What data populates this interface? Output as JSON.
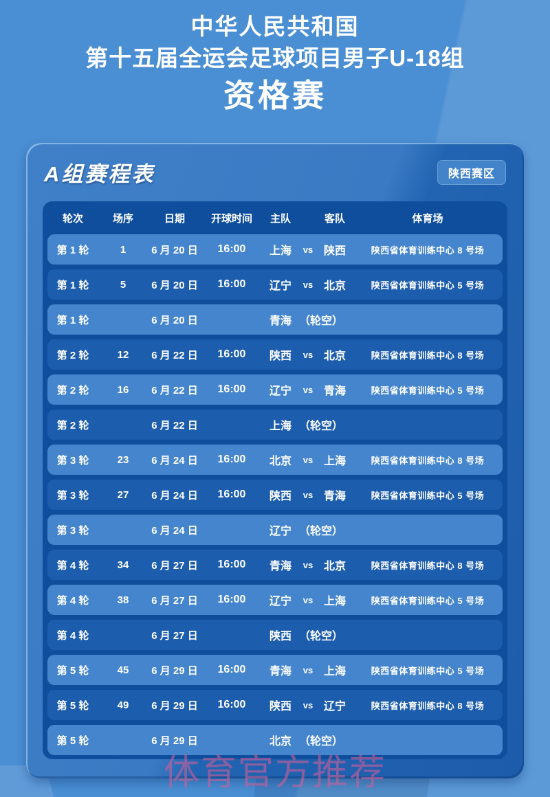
{
  "title": {
    "line1": "中华人民共和国",
    "line2": "第十五届全运会足球项目男子U-18组",
    "line3": "资格赛"
  },
  "schedule_card": {
    "title": "A组赛程表",
    "badge": "陕西赛区",
    "columns": {
      "round": "轮次",
      "seq": "场序",
      "date": "日期",
      "time": "开球时间",
      "home": "主队",
      "away": "客队",
      "venue": "体育场"
    },
    "vs_label": "vs",
    "rows": [
      {
        "round": "第 1 轮",
        "seq": "1",
        "date": "6 月 20 日",
        "time": "16:00",
        "home": "上海",
        "away": "陕西",
        "venue": "陕西省体育训练中心 8 号场"
      },
      {
        "round": "第 1 轮",
        "seq": "5",
        "date": "6 月 20 日",
        "time": "16:00",
        "home": "辽宁",
        "away": "北京",
        "venue": "陕西省体育训练中心 5 号场"
      },
      {
        "round": "第 1 轮",
        "date": "6 月 20 日",
        "team": "青海",
        "bye": "（轮空）"
      },
      {
        "round": "第 2 轮",
        "seq": "12",
        "date": "6 月 22 日",
        "time": "16:00",
        "home": "陕西",
        "away": "北京",
        "venue": "陕西省体育训练中心 8 号场"
      },
      {
        "round": "第 2 轮",
        "seq": "16",
        "date": "6 月 22 日",
        "time": "16:00",
        "home": "辽宁",
        "away": "青海",
        "venue": "陕西省体育训练中心 5 号场"
      },
      {
        "round": "第 2 轮",
        "date": "6 月 22 日",
        "team": "上海",
        "bye": "（轮空）"
      },
      {
        "round": "第 3 轮",
        "seq": "23",
        "date": "6 月 24 日",
        "time": "16:00",
        "home": "北京",
        "away": "上海",
        "venue": "陕西省体育训练中心 8 号场"
      },
      {
        "round": "第 3 轮",
        "seq": "27",
        "date": "6 月 24 日",
        "time": "16:00",
        "home": "陕西",
        "away": "青海",
        "venue": "陕西省体育训练中心 5 号场"
      },
      {
        "round": "第 3 轮",
        "date": "6 月 24 日",
        "team": "辽宁",
        "bye": "（轮空）"
      },
      {
        "round": "第 4 轮",
        "seq": "34",
        "date": "6 月 27 日",
        "time": "16:00",
        "home": "青海",
        "away": "北京",
        "venue": "陕西省体育训练中心 8 号场"
      },
      {
        "round": "第 4 轮",
        "seq": "38",
        "date": "6 月 27 日",
        "time": "16:00",
        "home": "辽宁",
        "away": "上海",
        "venue": "陕西省体育训练中心 5 号场"
      },
      {
        "round": "第 4 轮",
        "date": "6 月 27 日",
        "team": "陕西",
        "bye": "（轮空）"
      },
      {
        "round": "第 5 轮",
        "seq": "45",
        "date": "6 月 29 日",
        "time": "16:00",
        "home": "青海",
        "away": "上海",
        "venue": "陕西省体育训练中心 5 号场"
      },
      {
        "round": "第 5 轮",
        "seq": "49",
        "date": "6 月 29 日",
        "time": "16:00",
        "home": "陕西",
        "away": "辽宁",
        "venue": "陕西省体育训练中心 8 号场"
      },
      {
        "round": "第 5 轮",
        "date": "6 月 29 日",
        "team": "北京",
        "bye": "（轮空）"
      }
    ]
  },
  "watermark": "体育官方推荐",
  "colors": {
    "page_bg": "#4a8ed3",
    "card_light": "#3a7ac4",
    "card_dark": "#1d5cab",
    "panel_bg": "#0e4e9d",
    "row_light": "#4585cd",
    "row_dark": "#1d5dad",
    "badge_bg": "#4283c9",
    "text": "#ffffff",
    "watermark": "rgba(205,95,152,0.60)"
  }
}
